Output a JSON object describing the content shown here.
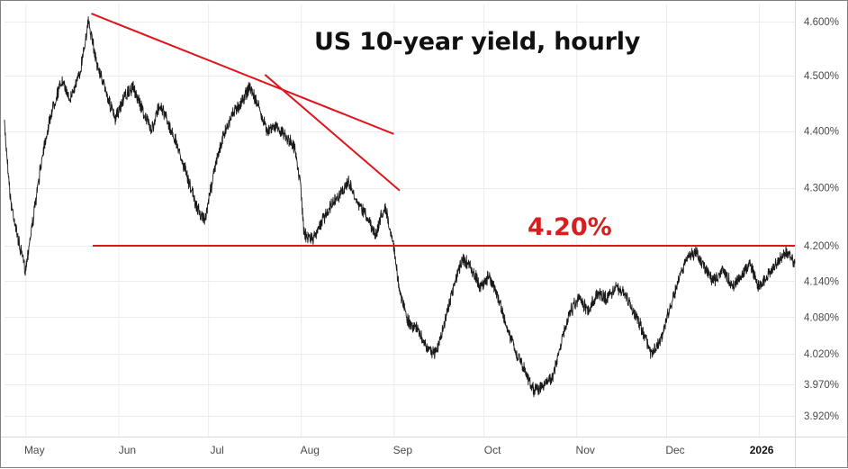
{
  "chart_data": {
    "type": "line",
    "title": "US 10-year yield, hourly",
    "y_scale": "log",
    "ylim": [
      3.88,
      4.64
    ],
    "y_ticks": [
      "4.600%",
      "4.500%",
      "4.400%",
      "4.300%",
      "4.200%",
      "4.140%",
      "4.080%",
      "4.020%",
      "3.970%",
      "3.920%"
    ],
    "x_ticks": [
      "May",
      "Jun",
      "Jul",
      "Aug",
      "Sep",
      "Oct",
      "Nov",
      "Dec",
      "2026"
    ],
    "grid": true,
    "series": [
      {
        "x": [
          "2025-04-24",
          "2025-04-26",
          "2025-04-29",
          "2025-05-01",
          "2025-05-04",
          "2025-05-07",
          "2025-05-10",
          "2025-05-13",
          "2025-05-16",
          "2025-05-19",
          "2025-05-22",
          "2025-05-25",
          "2025-05-28",
          "2025-05-31",
          "2025-06-03",
          "2025-06-06",
          "2025-06-09",
          "2025-06-12",
          "2025-06-15",
          "2025-06-18",
          "2025-06-21",
          "2025-06-24",
          "2025-06-27",
          "2025-06-30",
          "2025-07-03",
          "2025-07-06",
          "2025-07-09",
          "2025-07-12",
          "2025-07-15",
          "2025-07-18",
          "2025-07-21",
          "2025-07-24",
          "2025-07-27",
          "2025-07-30",
          "2025-08-01",
          "2025-08-02",
          "2025-08-05",
          "2025-08-08",
          "2025-08-11",
          "2025-08-14",
          "2025-08-17",
          "2025-08-20",
          "2025-08-23",
          "2025-08-26",
          "2025-08-29",
          "2025-09-01",
          "2025-09-03",
          "2025-09-06",
          "2025-09-09",
          "2025-09-12",
          "2025-09-15",
          "2025-09-18",
          "2025-09-21",
          "2025-09-24",
          "2025-09-27",
          "2025-09-30",
          "2025-10-03",
          "2025-10-06",
          "2025-10-09",
          "2025-10-12",
          "2025-10-15",
          "2025-10-18",
          "2025-10-21",
          "2025-10-24",
          "2025-10-27",
          "2025-10-30",
          "2025-11-02",
          "2025-11-05",
          "2025-11-08",
          "2025-11-11",
          "2025-11-14",
          "2025-11-17",
          "2025-11-20",
          "2025-11-23",
          "2025-11-26",
          "2025-11-29",
          "2025-12-02",
          "2025-12-05",
          "2025-12-08",
          "2025-12-11",
          "2025-12-14",
          "2025-12-17",
          "2025-12-20",
          "2025-12-23",
          "2025-12-26",
          "2025-12-29",
          "2026-01-01",
          "2026-01-04",
          "2026-01-07",
          "2026-01-10",
          "2026-01-13"
        ],
        "y": [
          4.41,
          4.28,
          4.2,
          4.16,
          4.26,
          4.37,
          4.44,
          4.49,
          4.46,
          4.5,
          4.6,
          4.52,
          4.47,
          4.42,
          4.46,
          4.48,
          4.44,
          4.4,
          4.45,
          4.41,
          4.37,
          4.32,
          4.27,
          4.24,
          4.33,
          4.39,
          4.43,
          4.45,
          4.48,
          4.44,
          4.4,
          4.41,
          4.39,
          4.37,
          4.3,
          4.22,
          4.21,
          4.24,
          4.27,
          4.29,
          4.31,
          4.27,
          4.25,
          4.22,
          4.27,
          4.2,
          4.12,
          4.07,
          4.06,
          4.03,
          4.02,
          4.07,
          4.13,
          4.18,
          4.16,
          4.13,
          4.15,
          4.11,
          4.06,
          4.02,
          3.99,
          3.96,
          3.97,
          3.98,
          4.04,
          4.09,
          4.11,
          4.09,
          4.12,
          4.11,
          4.13,
          4.12,
          4.09,
          4.06,
          4.02,
          4.04,
          4.09,
          4.14,
          4.18,
          4.19,
          4.16,
          4.14,
          4.16,
          4.13,
          4.15,
          4.17,
          4.13,
          4.15,
          4.17,
          4.19,
          4.17
        ]
      }
    ],
    "annotations": [
      {
        "type": "trendline",
        "color": "#e0141c",
        "from": {
          "x": "2025-05-23",
          "y": 4.615
        },
        "to": {
          "x": "2025-09-01",
          "y": 4.395
        }
      },
      {
        "type": "trendline",
        "color": "#e0141c",
        "from": {
          "x": "2025-07-20",
          "y": 4.502
        },
        "to": {
          "x": "2025-09-03",
          "y": 4.295
        }
      },
      {
        "type": "hline",
        "color": "#e0141c",
        "y": 4.2,
        "label": "4.20%"
      }
    ]
  }
}
